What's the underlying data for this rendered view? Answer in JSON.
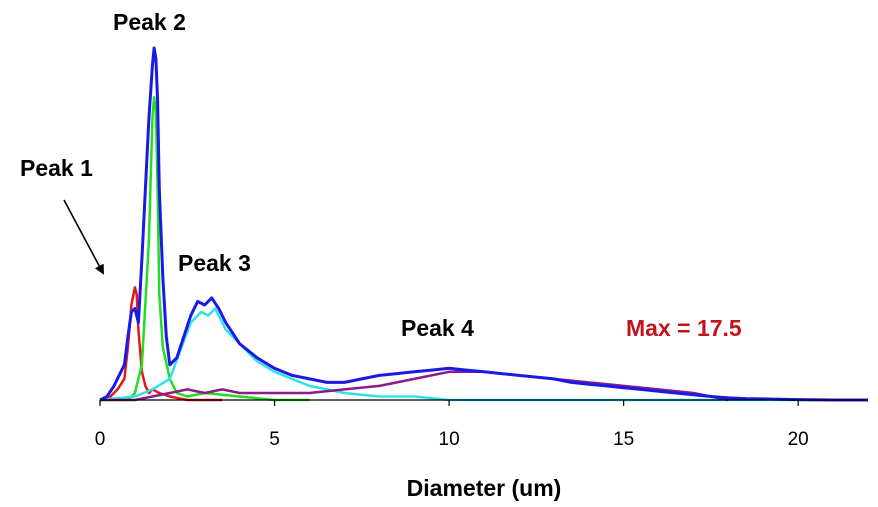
{
  "chart_data": {
    "type": "line",
    "xlabel": "Diameter (um)",
    "ylabel": "",
    "xlim": [
      0,
      22
    ],
    "ylim": [
      0,
      1.0
    ],
    "grid": false,
    "x_ticks": [
      "0",
      "5",
      "10",
      "15",
      "20"
    ],
    "annotations": {
      "peak1": "Peak 1",
      "peak2": "Peak 2",
      "peak3": "Peak 3",
      "peak4": "Peak 4",
      "max": "Max = 17.5"
    },
    "series": [
      {
        "color": "#e8161b",
        "x": [
          0.0,
          0.3,
          0.5,
          0.7,
          0.8,
          0.9,
          1.0,
          1.05,
          1.1,
          1.2,
          1.3,
          1.4,
          1.5,
          1.7,
          2.0,
          2.5,
          3.0,
          3.5
        ],
        "y": [
          0.0,
          0.01,
          0.03,
          0.06,
          0.15,
          0.27,
          0.32,
          0.3,
          0.2,
          0.08,
          0.04,
          0.02,
          0.03,
          0.02,
          0.01,
          0.0,
          0.0,
          0.0
        ]
      },
      {
        "color": "#22dd22",
        "x": [
          0.0,
          0.8,
          1.0,
          1.2,
          1.4,
          1.5,
          1.55,
          1.6,
          1.65,
          1.7,
          1.8,
          2.0,
          2.2,
          2.5,
          3.0,
          4.0,
          5.0,
          6.0
        ],
        "y": [
          0.0,
          0.0,
          0.02,
          0.1,
          0.45,
          0.8,
          0.86,
          0.82,
          0.6,
          0.3,
          0.15,
          0.06,
          0.02,
          0.01,
          0.02,
          0.01,
          0.0,
          0.0
        ]
      },
      {
        "color": "#33e0e8",
        "x": [
          0.0,
          1.0,
          1.5,
          2.0,
          2.3,
          2.6,
          2.9,
          3.1,
          3.3,
          3.6,
          4.0,
          4.5,
          5.0,
          5.5,
          6.0,
          6.5,
          7.0,
          8.0,
          9.0,
          10.0,
          12.0,
          15.0,
          17.5,
          22.0
        ],
        "y": [
          0.0,
          0.01,
          0.03,
          0.06,
          0.14,
          0.22,
          0.25,
          0.24,
          0.26,
          0.2,
          0.16,
          0.11,
          0.08,
          0.06,
          0.04,
          0.03,
          0.02,
          0.01,
          0.01,
          0.0,
          0.0,
          0.0,
          0.0,
          0.0
        ]
      },
      {
        "color": "#8b1a8b",
        "x": [
          0.0,
          1.0,
          2.0,
          2.5,
          3.0,
          3.5,
          4.0,
          5.0,
          6.0,
          7.0,
          8.0,
          9.0,
          10.0,
          11.0,
          12.0,
          13.0,
          14.0,
          15.0,
          16.0,
          17.0,
          17.5,
          18.0
        ],
        "y": [
          0.0,
          0.0,
          0.02,
          0.03,
          0.02,
          0.03,
          0.02,
          0.02,
          0.02,
          0.03,
          0.04,
          0.06,
          0.08,
          0.08,
          0.07,
          0.06,
          0.05,
          0.04,
          0.03,
          0.02,
          0.01,
          0.0
        ]
      },
      {
        "color": "#1a1ae6",
        "x": [
          0.0,
          0.2,
          0.4,
          0.6,
          0.7,
          0.8,
          0.9,
          1.0,
          1.1,
          1.2,
          1.3,
          1.4,
          1.5,
          1.55,
          1.6,
          1.65,
          1.7,
          1.8,
          1.9,
          2.0,
          2.2,
          2.4,
          2.6,
          2.8,
          3.0,
          3.2,
          3.4,
          3.6,
          3.8,
          4.0,
          4.5,
          5.0,
          5.5,
          6.0,
          6.5,
          7.0,
          7.5,
          8.0,
          8.5,
          9.0,
          9.5,
          10.0,
          10.5,
          11.0,
          11.5,
          12.0,
          12.5,
          13.0,
          13.5,
          14.0,
          14.5,
          15.0,
          15.5,
          16.0,
          16.5,
          17.0,
          17.5,
          18.0,
          18.5,
          19.0,
          19.5,
          20.0,
          21.0,
          22.0
        ],
        "y": [
          0.0,
          0.01,
          0.04,
          0.08,
          0.1,
          0.18,
          0.25,
          0.26,
          0.22,
          0.4,
          0.6,
          0.8,
          0.95,
          1.0,
          0.97,
          0.85,
          0.6,
          0.35,
          0.18,
          0.1,
          0.12,
          0.18,
          0.24,
          0.28,
          0.27,
          0.29,
          0.26,
          0.22,
          0.19,
          0.16,
          0.12,
          0.09,
          0.07,
          0.06,
          0.05,
          0.05,
          0.06,
          0.07,
          0.075,
          0.08,
          0.085,
          0.09,
          0.085,
          0.08,
          0.075,
          0.07,
          0.065,
          0.06,
          0.05,
          0.045,
          0.04,
          0.035,
          0.03,
          0.025,
          0.02,
          0.015,
          0.01,
          0.006,
          0.004,
          0.003,
          0.002,
          0.001,
          0.0,
          0.0
        ]
      }
    ]
  }
}
